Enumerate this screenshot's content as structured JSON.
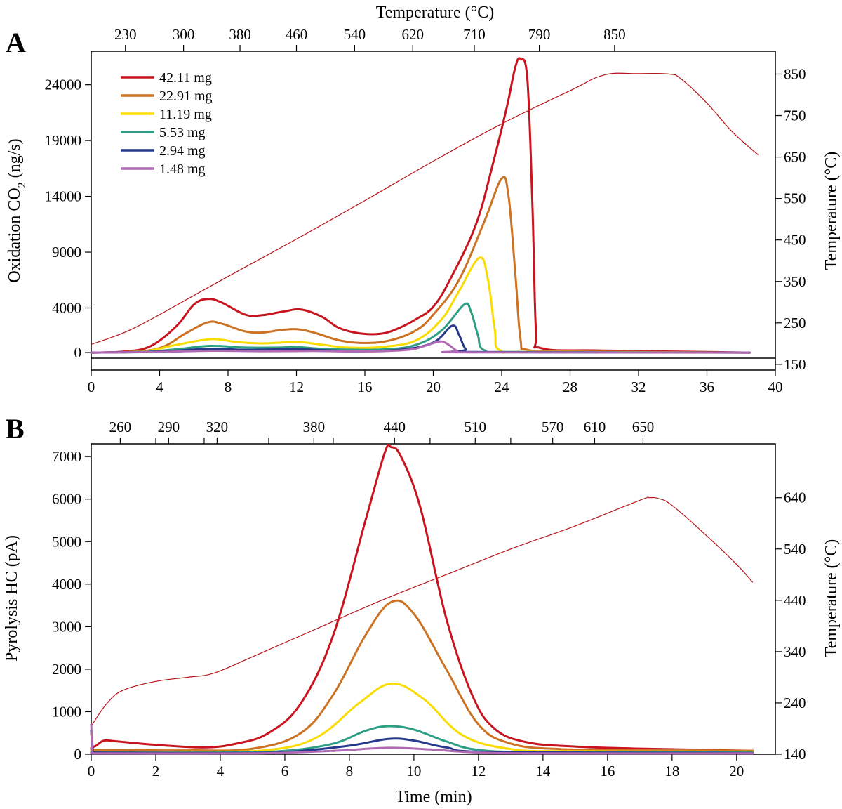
{
  "chart_data": [
    {
      "panel": "A",
      "type": "line",
      "xlabel": "",
      "x_ticks": [
        "0",
        "4",
        "8",
        "12",
        "16",
        "20",
        "24",
        "28",
        "32",
        "36",
        "40"
      ],
      "xlim": [
        0,
        40
      ],
      "ylabel_main": "Oxidation CO",
      "ylabel_sub": "2",
      "ylabel_tail": " (ng/s)",
      "ylim": [
        -500,
        27000
      ],
      "y_ticks": [
        "0",
        "4000",
        "9000",
        "14000",
        "19000",
        "24000"
      ],
      "y_tick_values": [
        0,
        4000,
        9000,
        14000,
        19000,
        24000
      ],
      "y2label": "Temperature (°C)",
      "y2lim": [
        165,
        905
      ],
      "y2_ticks": [
        "150",
        "250",
        "350",
        "450",
        "550",
        "650",
        "750",
        "850"
      ],
      "y2_tick_values": [
        150,
        250,
        350,
        450,
        550,
        650,
        750,
        850
      ],
      "top_title": "Temperature (°C)",
      "top_ticks": [
        "230",
        "300",
        "380",
        "460",
        "540",
        "620",
        "710",
        "790",
        "850"
      ],
      "top_tick_times": [
        2.0,
        5.4,
        8.7,
        12.0,
        15.4,
        18.8,
        22.4,
        26.2,
        30.6
      ],
      "legend": [
        "42.11 mg",
        "22.91 mg",
        "11.19 mg",
        "5.53 mg",
        "2.94 mg",
        "1.48 mg"
      ],
      "temperature": [
        [
          0,
          198
        ],
        [
          2,
          228
        ],
        [
          4,
          270
        ],
        [
          8,
          362
        ],
        [
          12,
          452
        ],
        [
          16,
          545
        ],
        [
          20,
          640
        ],
        [
          24,
          730
        ],
        [
          28,
          810
        ],
        [
          30,
          848
        ],
        [
          32,
          851
        ],
        [
          33.8,
          850
        ],
        [
          34.5,
          838
        ],
        [
          36,
          780
        ],
        [
          37.5,
          710
        ],
        [
          39,
          655
        ]
      ],
      "series": [
        {
          "name": "42.11 mg",
          "color": "#c8141e",
          "points": [
            [
              0,
              0
            ],
            [
              2,
              100
            ],
            [
              3.5,
              600
            ],
            [
              5,
              2400
            ],
            [
              6,
              4300
            ],
            [
              6.8,
              4800
            ],
            [
              7.6,
              4500
            ],
            [
              9,
              3400
            ],
            [
              10,
              3350
            ],
            [
              11.3,
              3700
            ],
            [
              12.3,
              3850
            ],
            [
              13.5,
              3200
            ],
            [
              14.5,
              2200
            ],
            [
              15.8,
              1700
            ],
            [
              17,
              1700
            ],
            [
              18,
              2200
            ],
            [
              19,
              3000
            ],
            [
              20,
              4100
            ],
            [
              21,
              6600
            ],
            [
              22.5,
              11500
            ],
            [
              23.5,
              17000
            ],
            [
              24.3,
              22000
            ],
            [
              24.8,
              25600
            ],
            [
              25.1,
              26300
            ],
            [
              25.5,
              24500
            ],
            [
              25.8,
              13000
            ],
            [
              26.0,
              2000
            ],
            [
              26.3,
              400
            ],
            [
              30,
              180
            ],
            [
              38.5,
              0
            ]
          ]
        },
        {
          "name": "22.91 mg",
          "color": "#cd7222",
          "points": [
            [
              0,
              0
            ],
            [
              2,
              50
            ],
            [
              4,
              400
            ],
            [
              5.5,
              1700
            ],
            [
              6.8,
              2700
            ],
            [
              7.6,
              2600
            ],
            [
              9,
              1900
            ],
            [
              10,
              1800
            ],
            [
              11,
              2000
            ],
            [
              12,
              2100
            ],
            [
              13,
              1800
            ],
            [
              14.5,
              1100
            ],
            [
              16,
              850
            ],
            [
              17.5,
              1100
            ],
            [
              19,
              2000
            ],
            [
              20,
              3400
            ],
            [
              21.5,
              6500
            ],
            [
              23,
              11800
            ],
            [
              24.0,
              15600
            ],
            [
              24.4,
              14000
            ],
            [
              24.8,
              7000
            ],
            [
              25.1,
              1200
            ],
            [
              25.5,
              250
            ],
            [
              28,
              100
            ],
            [
              38.5,
              0
            ]
          ]
        },
        {
          "name": "11.19 mg",
          "color": "#fadc00",
          "points": [
            [
              0,
              0
            ],
            [
              3,
              100
            ],
            [
              5,
              700
            ],
            [
              7,
              1200
            ],
            [
              8.5,
              950
            ],
            [
              10,
              820
            ],
            [
              12,
              950
            ],
            [
              13.5,
              700
            ],
            [
              15,
              450
            ],
            [
              17,
              500
            ],
            [
              19,
              1100
            ],
            [
              20.5,
              3000
            ],
            [
              21.5,
              5500
            ],
            [
              22.7,
              8500
            ],
            [
              23.2,
              6500
            ],
            [
              23.6,
              2000
            ],
            [
              23.9,
              200
            ],
            [
              26,
              60
            ],
            [
              38.5,
              0
            ]
          ]
        },
        {
          "name": "5.53 mg",
          "color": "#2e9e84",
          "points": [
            [
              0,
              0
            ],
            [
              3,
              50
            ],
            [
              5,
              300
            ],
            [
              7,
              600
            ],
            [
              9,
              450
            ],
            [
              11,
              450
            ],
            [
              12,
              500
            ],
            [
              14,
              300
            ],
            [
              17,
              280
            ],
            [
              19,
              700
            ],
            [
              20.5,
              2000
            ],
            [
              21.8,
              4300
            ],
            [
              22.2,
              3700
            ],
            [
              22.6,
              1600
            ],
            [
              23,
              200
            ],
            [
              25,
              50
            ],
            [
              38.5,
              0
            ]
          ]
        },
        {
          "name": "2.94 mg",
          "color": "#27398c",
          "points": [
            [
              0,
              0
            ],
            [
              4,
              100
            ],
            [
              7,
              350
            ],
            [
              9,
              250
            ],
            [
              12,
              300
            ],
            [
              15,
              150
            ],
            [
              18,
              250
            ],
            [
              20,
              900
            ],
            [
              21.1,
              2400
            ],
            [
              21.5,
              1600
            ],
            [
              21.9,
              300
            ],
            [
              22.5,
              50
            ],
            [
              38.5,
              0
            ]
          ]
        },
        {
          "name": "1.48 mg",
          "color": "#b06ab4",
          "points": [
            [
              0,
              0
            ],
            [
              4,
              60
            ],
            [
              7,
              160
            ],
            [
              10,
              120
            ],
            [
              13,
              140
            ],
            [
              16,
              100
            ],
            [
              18.5,
              250
            ],
            [
              19.5,
              600
            ],
            [
              20.4,
              1000
            ],
            [
              20.9,
              700
            ],
            [
              21.4,
              150
            ],
            [
              22,
              20
            ],
            [
              38.5,
              0
            ]
          ]
        }
      ]
    },
    {
      "panel": "B",
      "type": "line",
      "xlabel": "Time (min)",
      "x_ticks": [
        "0",
        "2",
        "4",
        "6",
        "8",
        "10",
        "12",
        "14",
        "16",
        "18",
        "20"
      ],
      "xlim": [
        0,
        21.2
      ],
      "ylabel": "Pyrolysis HC (pA)",
      "ylim": [
        0,
        7300
      ],
      "y_ticks": [
        "0",
        "1000",
        "2000",
        "3000",
        "4000",
        "5000",
        "6000",
        "7000"
      ],
      "y_tick_values": [
        0,
        1000,
        2000,
        3000,
        4000,
        5000,
        6000,
        7000
      ],
      "y2label": "Temperature (°C)",
      "y2lim": [
        140,
        745
      ],
      "y2_ticks": [
        "140",
        "240",
        "340",
        "440",
        "540",
        "640"
      ],
      "y2_tick_values": [
        140,
        240,
        340,
        440,
        540,
        640
      ],
      "top_ticks": [
        "260",
        "290",
        "320",
        "380",
        "440",
        "510",
        "570",
        "610",
        "650"
      ],
      "top_tick_times": [
        0.9,
        2.4,
        3.9,
        6.9,
        9.4,
        11.9,
        14.3,
        15.6,
        17.1
      ],
      "top_minor_ticks": [
        2.0,
        3.5,
        5.5,
        7.5,
        10.5,
        13.0
      ],
      "temperature": [
        [
          0,
          195
        ],
        [
          0.5,
          240
        ],
        [
          1,
          265
        ],
        [
          2,
          282
        ],
        [
          3,
          290
        ],
        [
          3.8,
          298
        ],
        [
          5,
          330
        ],
        [
          7,
          385
        ],
        [
          9,
          440
        ],
        [
          11,
          490
        ],
        [
          13,
          540
        ],
        [
          15,
          585
        ],
        [
          17,
          635
        ],
        [
          17.3,
          640
        ],
        [
          17.6,
          638
        ],
        [
          18,
          625
        ],
        [
          19,
          570
        ],
        [
          20,
          510
        ],
        [
          20.5,
          475
        ]
      ],
      "series": [
        {
          "name": "42.11 mg",
          "color": "#c8141e",
          "points": [
            [
              0,
              150
            ],
            [
              0.15,
              200
            ],
            [
              0.4,
              320
            ],
            [
              0.8,
              300
            ],
            [
              2,
              220
            ],
            [
              3.5,
              160
            ],
            [
              4.5,
              250
            ],
            [
              5.5,
              500
            ],
            [
              6.5,
              1200
            ],
            [
              7.5,
              2800
            ],
            [
              8.5,
              5500
            ],
            [
              9.1,
              7100
            ],
            [
              9.3,
              7220
            ],
            [
              9.6,
              7000
            ],
            [
              10.2,
              5800
            ],
            [
              11,
              3200
            ],
            [
              11.8,
              1400
            ],
            [
              12.5,
              600
            ],
            [
              13.5,
              280
            ],
            [
              15,
              180
            ],
            [
              17,
              130
            ],
            [
              19,
              100
            ],
            [
              20.5,
              80
            ]
          ]
        },
        {
          "name": "22.91 mg",
          "color": "#cd7222",
          "points": [
            [
              0,
              100
            ],
            [
              1,
              100
            ],
            [
              3,
              90
            ],
            [
              5,
              130
            ],
            [
              6.5,
              500
            ],
            [
              7.5,
              1400
            ],
            [
              8.5,
              2800
            ],
            [
              9.3,
              3580
            ],
            [
              10,
              3300
            ],
            [
              11,
              2000
            ],
            [
              12,
              700
            ],
            [
              13,
              250
            ],
            [
              14.5,
              120
            ],
            [
              17,
              100
            ],
            [
              20.5,
              80
            ]
          ]
        },
        {
          "name": "22.91 mg-start",
          "color": "#cd7222",
          "points": [
            [
              0,
              480
            ],
            [
              0.05,
              120
            ]
          ]
        },
        {
          "name": "11.19 mg",
          "color": "#fadc00",
          "points": [
            [
              0,
              60
            ],
            [
              3,
              60
            ],
            [
              5.5,
              100
            ],
            [
              7,
              400
            ],
            [
              8.3,
              1200
            ],
            [
              9.3,
              1660
            ],
            [
              10.3,
              1300
            ],
            [
              11.5,
              450
            ],
            [
              13,
              120
            ],
            [
              15,
              70
            ],
            [
              20.5,
              60
            ]
          ]
        },
        {
          "name": "5.53 mg",
          "color": "#2e9e84",
          "points": [
            [
              0,
              40
            ],
            [
              4,
              40
            ],
            [
              6,
              80
            ],
            [
              7.5,
              250
            ],
            [
              8.5,
              550
            ],
            [
              9.2,
              660
            ],
            [
              10,
              580
            ],
            [
              11,
              300
            ],
            [
              12,
              100
            ],
            [
              14,
              50
            ],
            [
              20.5,
              40
            ]
          ]
        },
        {
          "name": "2.94 mg",
          "color": "#27398c",
          "points": [
            [
              0,
              40
            ],
            [
              4,
              30
            ],
            [
              6,
              50
            ],
            [
              8,
              200
            ],
            [
              9.2,
              360
            ],
            [
              10,
              320
            ],
            [
              11,
              160
            ],
            [
              12.5,
              50
            ],
            [
              20.5,
              30
            ]
          ]
        },
        {
          "name": "2.94 mg-start",
          "color": "#27398c",
          "points": [
            [
              0,
              550
            ],
            [
              0.05,
              80
            ]
          ]
        },
        {
          "name": "1.48 mg",
          "color": "#b06ab4",
          "points": [
            [
              0,
              20
            ],
            [
              5,
              20
            ],
            [
              7.5,
              80
            ],
            [
              9.2,
              150
            ],
            [
              10.5,
              110
            ],
            [
              12,
              40
            ],
            [
              14,
              20
            ],
            [
              20.5,
              20
            ]
          ]
        },
        {
          "name": "1.48 mg-start",
          "color": "#b06ab4",
          "points": [
            [
              0,
              700
            ],
            [
              0.04,
              60
            ]
          ]
        }
      ]
    }
  ],
  "labels": {
    "panel_a": "A",
    "panel_b": "B",
    "top_title_a": "Temperature (°C)",
    "xlabel_b": "Time (min)"
  },
  "temperature_color": "#b4141a"
}
